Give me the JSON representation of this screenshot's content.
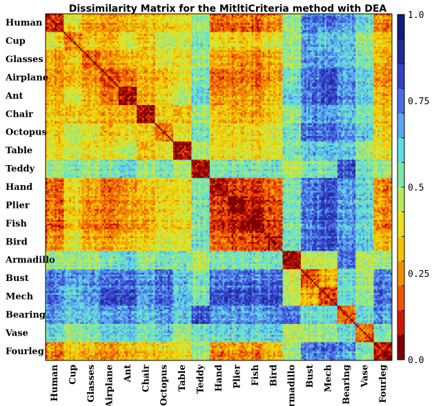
{
  "chart_data": {
    "type": "heatmap",
    "title": "Dissimilarity Matrix for the MitltiCriteria method with DEA",
    "categories": [
      "Human",
      "Cup",
      "Glasses",
      "Airplane",
      "Ant",
      "Chair",
      "Octopus",
      "Table",
      "Teddy",
      "Hand",
      "Plier",
      "Fish",
      "Bird",
      "Armadillo",
      "Bust",
      "Mech",
      "Bearing",
      "Vase",
      "Fourleg"
    ],
    "colorbar": {
      "min": 0.0,
      "max": 1.0,
      "ticks": [
        1.0,
        0.75,
        0.5,
        0.25,
        0.0
      ],
      "tick_labels": [
        "1.0",
        "0.75",
        "0.5",
        "0.25",
        "0.0"
      ],
      "colormap": "jet_discrete",
      "colors": [
        "#800000",
        "#cc1a00",
        "#ee5500",
        "#f09000",
        "#f2c400",
        "#e6e020",
        "#b8e85a",
        "#7fe6a6",
        "#5fdcde",
        "#5aa8f0",
        "#4a6ee0",
        "#3440c8",
        "#202c9c",
        "#121c7a"
      ]
    },
    "block_means": [
      [
        0.15,
        0.4,
        0.3,
        0.25,
        0.3,
        0.35,
        0.35,
        0.4,
        0.5,
        0.2,
        0.2,
        0.2,
        0.25,
        0.5,
        0.75,
        0.75,
        0.7,
        0.6,
        0.25
      ],
      [
        0.4,
        0.25,
        0.35,
        0.3,
        0.4,
        0.35,
        0.45,
        0.45,
        0.55,
        0.4,
        0.35,
        0.35,
        0.4,
        0.5,
        0.7,
        0.65,
        0.65,
        0.5,
        0.35
      ],
      [
        0.3,
        0.35,
        0.2,
        0.25,
        0.3,
        0.35,
        0.4,
        0.4,
        0.5,
        0.3,
        0.25,
        0.25,
        0.3,
        0.5,
        0.7,
        0.7,
        0.65,
        0.55,
        0.3
      ],
      [
        0.25,
        0.3,
        0.25,
        0.15,
        0.2,
        0.3,
        0.3,
        0.4,
        0.55,
        0.2,
        0.2,
        0.2,
        0.25,
        0.55,
        0.75,
        0.8,
        0.7,
        0.6,
        0.25
      ],
      [
        0.3,
        0.4,
        0.3,
        0.2,
        0.05,
        0.3,
        0.35,
        0.45,
        0.6,
        0.25,
        0.25,
        0.25,
        0.3,
        0.6,
        0.75,
        0.8,
        0.7,
        0.6,
        0.3
      ],
      [
        0.35,
        0.35,
        0.35,
        0.3,
        0.3,
        0.1,
        0.35,
        0.35,
        0.5,
        0.35,
        0.3,
        0.3,
        0.35,
        0.5,
        0.7,
        0.7,
        0.65,
        0.55,
        0.35
      ],
      [
        0.35,
        0.45,
        0.4,
        0.3,
        0.35,
        0.35,
        0.2,
        0.4,
        0.55,
        0.35,
        0.35,
        0.35,
        0.4,
        0.55,
        0.75,
        0.75,
        0.7,
        0.6,
        0.35
      ],
      [
        0.4,
        0.45,
        0.4,
        0.4,
        0.45,
        0.35,
        0.4,
        0.1,
        0.5,
        0.4,
        0.4,
        0.4,
        0.4,
        0.55,
        0.65,
        0.65,
        0.65,
        0.5,
        0.4
      ],
      [
        0.5,
        0.55,
        0.5,
        0.55,
        0.6,
        0.5,
        0.55,
        0.5,
        0.05,
        0.55,
        0.55,
        0.55,
        0.55,
        0.45,
        0.55,
        0.55,
        0.8,
        0.55,
        0.5
      ],
      [
        0.2,
        0.4,
        0.3,
        0.2,
        0.25,
        0.35,
        0.35,
        0.4,
        0.55,
        0.1,
        0.15,
        0.15,
        0.2,
        0.55,
        0.75,
        0.8,
        0.7,
        0.6,
        0.25
      ],
      [
        0.2,
        0.35,
        0.25,
        0.2,
        0.25,
        0.3,
        0.35,
        0.4,
        0.55,
        0.15,
        0.05,
        0.1,
        0.15,
        0.55,
        0.75,
        0.8,
        0.7,
        0.6,
        0.25
      ],
      [
        0.2,
        0.35,
        0.25,
        0.2,
        0.25,
        0.3,
        0.35,
        0.4,
        0.55,
        0.15,
        0.1,
        0.05,
        0.15,
        0.55,
        0.75,
        0.8,
        0.7,
        0.6,
        0.25
      ],
      [
        0.25,
        0.4,
        0.3,
        0.25,
        0.3,
        0.35,
        0.4,
        0.4,
        0.55,
        0.2,
        0.15,
        0.15,
        0.1,
        0.55,
        0.75,
        0.8,
        0.7,
        0.6,
        0.3
      ],
      [
        0.5,
        0.5,
        0.5,
        0.55,
        0.6,
        0.5,
        0.55,
        0.55,
        0.45,
        0.55,
        0.55,
        0.55,
        0.55,
        0.05,
        0.45,
        0.45,
        0.75,
        0.45,
        0.5
      ],
      [
        0.75,
        0.7,
        0.7,
        0.75,
        0.75,
        0.7,
        0.75,
        0.65,
        0.55,
        0.75,
        0.75,
        0.75,
        0.75,
        0.45,
        0.2,
        0.3,
        0.6,
        0.5,
        0.75
      ],
      [
        0.75,
        0.65,
        0.7,
        0.8,
        0.8,
        0.7,
        0.75,
        0.65,
        0.55,
        0.8,
        0.8,
        0.8,
        0.8,
        0.45,
        0.3,
        0.15,
        0.6,
        0.5,
        0.75
      ],
      [
        0.7,
        0.65,
        0.65,
        0.7,
        0.7,
        0.65,
        0.7,
        0.65,
        0.8,
        0.7,
        0.7,
        0.7,
        0.7,
        0.75,
        0.6,
        0.6,
        0.2,
        0.6,
        0.7
      ],
      [
        0.6,
        0.5,
        0.55,
        0.6,
        0.6,
        0.55,
        0.6,
        0.5,
        0.55,
        0.6,
        0.6,
        0.6,
        0.6,
        0.45,
        0.5,
        0.5,
        0.6,
        0.2,
        0.55
      ],
      [
        0.25,
        0.35,
        0.3,
        0.25,
        0.3,
        0.35,
        0.35,
        0.4,
        0.5,
        0.25,
        0.25,
        0.25,
        0.3,
        0.5,
        0.75,
        0.75,
        0.7,
        0.55,
        0.1
      ]
    ]
  }
}
